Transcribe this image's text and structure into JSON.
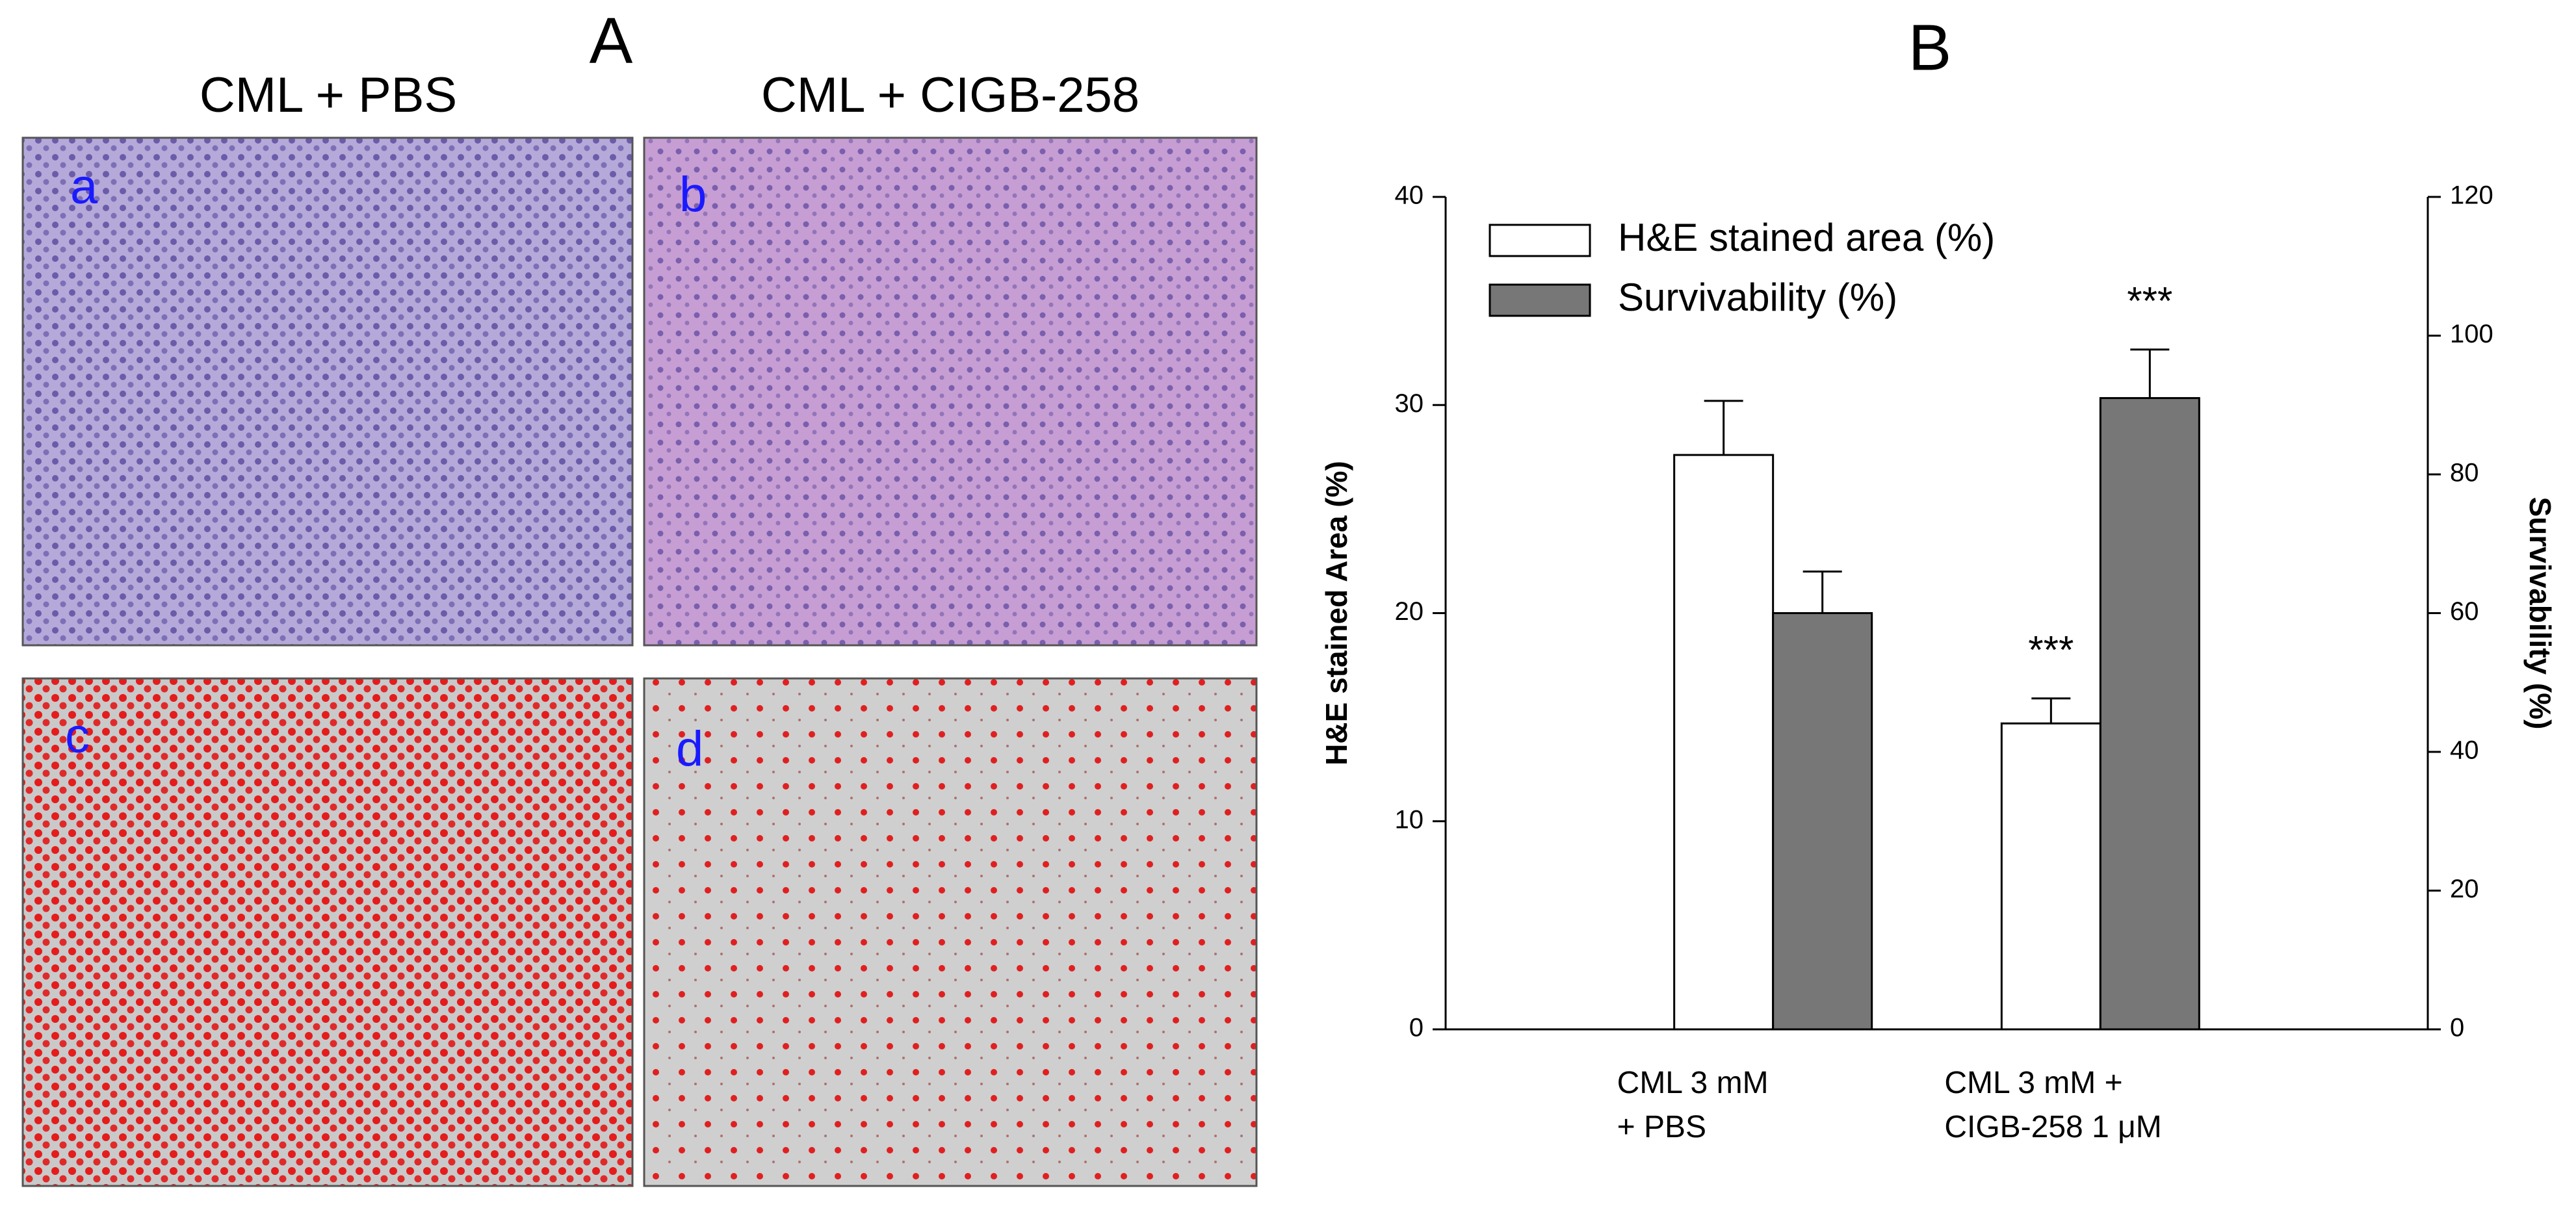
{
  "panel_a": {
    "label": "A",
    "columns": [
      "CML + PBS",
      "CML + CIGB-258"
    ],
    "image_labels": [
      "a",
      "b",
      "c",
      "d"
    ]
  },
  "chart_data": {
    "type": "bar",
    "title": "B",
    "categories": [
      "CML 3 mM\n+  PBS",
      "CML 3 mM +\nCIGB-258 1 μM"
    ],
    "series": [
      {
        "name": "H&E stained area (%)",
        "color": "#ffffff",
        "values": [
          27.6,
          14.7
        ],
        "errors": [
          2.6,
          1.2
        ]
      },
      {
        "name": "Survivability (%)",
        "color": "#777777",
        "values": [
          60,
          91
        ],
        "errors": [
          6,
          7
        ],
        "axis": "y2"
      }
    ],
    "annotations": [
      "***",
      "***"
    ],
    "ylabel": "H&E stained Area (%)",
    "y2label": "Survivability (%)",
    "ylim": [
      0,
      40
    ],
    "yticks": [
      0,
      10,
      20,
      30,
      40
    ],
    "y2lim": [
      0,
      120
    ],
    "y2ticks": [
      0,
      20,
      40,
      60,
      80,
      100,
      120
    ],
    "legend": "upper left"
  }
}
